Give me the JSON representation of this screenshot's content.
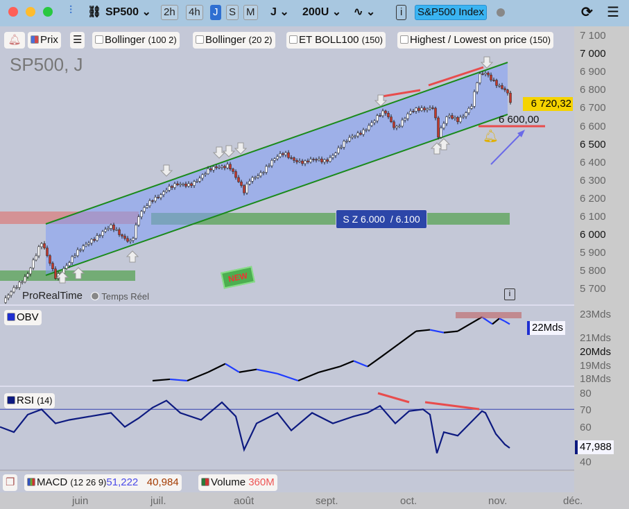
{
  "toolbar": {
    "symbol": "SP500",
    "timeframes": [
      "2h",
      "4h",
      "J",
      "S",
      "M"
    ],
    "active_timeframe": "J",
    "period": "J",
    "units": "200U",
    "index_label": "S&P500 Index"
  },
  "indicators": {
    "alert": "alert",
    "price": "Prix",
    "bollinger1": "Bollinger",
    "bollinger1_params": "(100 2)",
    "bollinger2": "Bollinger",
    "bollinger2_params": "(20 2)",
    "etboll": "ET BOLL100",
    "etboll_params": "(150)",
    "highlow": "Highest / Lowest on price",
    "highlow_params": "(150)"
  },
  "chart": {
    "title": "SP500, J",
    "provider": "ProRealTime",
    "mode": "Temps Réel",
    "current_price": "6 720,32",
    "alert_level": "6 600,00",
    "zone_label": "S Z 6.000  / 6.100",
    "new_badge": "NEW"
  },
  "price_axis": [
    "7 100",
    "7 000",
    "6 900",
    "6 800",
    "6 700",
    "6 600",
    "6 500",
    "6 400",
    "6 300",
    "6 200",
    "6 100",
    "6 000",
    "5 900",
    "5 800",
    "5 700"
  ],
  "obv": {
    "label": "OBV",
    "current": "22Mds",
    "axis": [
      "23Mds",
      "21Mds",
      "20Mds",
      "19Mds",
      "18Mds"
    ]
  },
  "rsi": {
    "label": "RSI",
    "params": "(14)",
    "current": "47,988",
    "axis": [
      "80",
      "70",
      "60",
      "40"
    ]
  },
  "bottom": {
    "macd": "MACD",
    "macd_params": "(12 26 9)",
    "macd_v1": "51,222",
    "macd_v2": "40,984",
    "volume": "Volume",
    "volume_v": "360M"
  },
  "months": [
    "juin",
    "juil.",
    "août",
    "sept.",
    "oct.",
    "nov.",
    "déc."
  ],
  "chart_data": {
    "type": "candlestick",
    "price_path": [
      [
        10,
        5650
      ],
      [
        40,
        5800
      ],
      [
        60,
        5950
      ],
      [
        80,
        5780
      ],
      [
        100,
        5850
      ],
      [
        130,
        5980
      ],
      [
        160,
        6040
      ],
      [
        190,
        5970
      ],
      [
        200,
        6100
      ],
      [
        220,
        6200
      ],
      [
        240,
        6260
      ],
      [
        270,
        6280
      ],
      [
        300,
        6350
      ],
      [
        330,
        6400
      ],
      [
        352,
        6230
      ],
      [
        360,
        6300
      ],
      [
        390,
        6400
      ],
      [
        410,
        6450
      ],
      [
        440,
        6400
      ],
      [
        470,
        6420
      ],
      [
        490,
        6480
      ],
      [
        510,
        6550
      ],
      [
        540,
        6630
      ],
      [
        555,
        6680
      ],
      [
        570,
        6600
      ],
      [
        590,
        6670
      ],
      [
        610,
        6700
      ],
      [
        625,
        6720
      ],
      [
        632,
        6550
      ],
      [
        645,
        6650
      ],
      [
        660,
        6640
      ],
      [
        680,
        6720
      ],
      [
        690,
        6870
      ],
      [
        700,
        6890
      ],
      [
        715,
        6850
      ],
      [
        730,
        6800
      ],
      [
        737,
        6720
      ]
    ],
    "obv_path": [
      [
        220,
        18.0
      ],
      [
        245,
        18.1
      ],
      [
        270,
        18.0
      ],
      [
        300,
        18.6
      ],
      [
        325,
        19.2
      ],
      [
        345,
        18.6
      ],
      [
        370,
        18.8
      ],
      [
        400,
        18.5
      ],
      [
        430,
        18.0
      ],
      [
        460,
        18.6
      ],
      [
        490,
        19.0
      ],
      [
        510,
        19.4
      ],
      [
        530,
        19.0
      ],
      [
        550,
        19.7
      ],
      [
        575,
        20.6
      ],
      [
        600,
        21.5
      ],
      [
        620,
        21.6
      ],
      [
        640,
        21.4
      ],
      [
        660,
        21.5
      ],
      [
        695,
        22.5
      ],
      [
        710,
        22.0
      ],
      [
        720,
        22.4
      ],
      [
        728,
        22.2
      ],
      [
        735,
        22.0
      ]
    ],
    "rsi_path": [
      [
        0,
        60
      ],
      [
        20,
        57
      ],
      [
        40,
        67
      ],
      [
        60,
        70
      ],
      [
        80,
        62
      ],
      [
        100,
        64
      ],
      [
        130,
        66
      ],
      [
        160,
        68
      ],
      [
        180,
        60
      ],
      [
        200,
        65
      ],
      [
        220,
        71
      ],
      [
        240,
        75
      ],
      [
        260,
        68
      ],
      [
        290,
        64
      ],
      [
        320,
        74
      ],
      [
        340,
        66
      ],
      [
        352,
        47
      ],
      [
        370,
        62
      ],
      [
        400,
        68
      ],
      [
        420,
        58
      ],
      [
        450,
        68
      ],
      [
        480,
        62
      ],
      [
        510,
        66
      ],
      [
        530,
        68
      ],
      [
        548,
        72
      ],
      [
        570,
        62
      ],
      [
        590,
        69
      ],
      [
        610,
        70
      ],
      [
        620,
        67
      ],
      [
        630,
        45
      ],
      [
        640,
        57
      ],
      [
        660,
        55
      ],
      [
        680,
        63
      ],
      [
        695,
        69
      ],
      [
        700,
        68
      ],
      [
        715,
        56
      ],
      [
        728,
        50
      ],
      [
        735,
        48
      ]
    ],
    "colors": {
      "up": "#ffffff",
      "down": "#c0392b",
      "channel": "#1a8a1a",
      "obv_up": "#000000",
      "obv_down": "#1f3cff",
      "rsi": "#0d1a80"
    }
  }
}
